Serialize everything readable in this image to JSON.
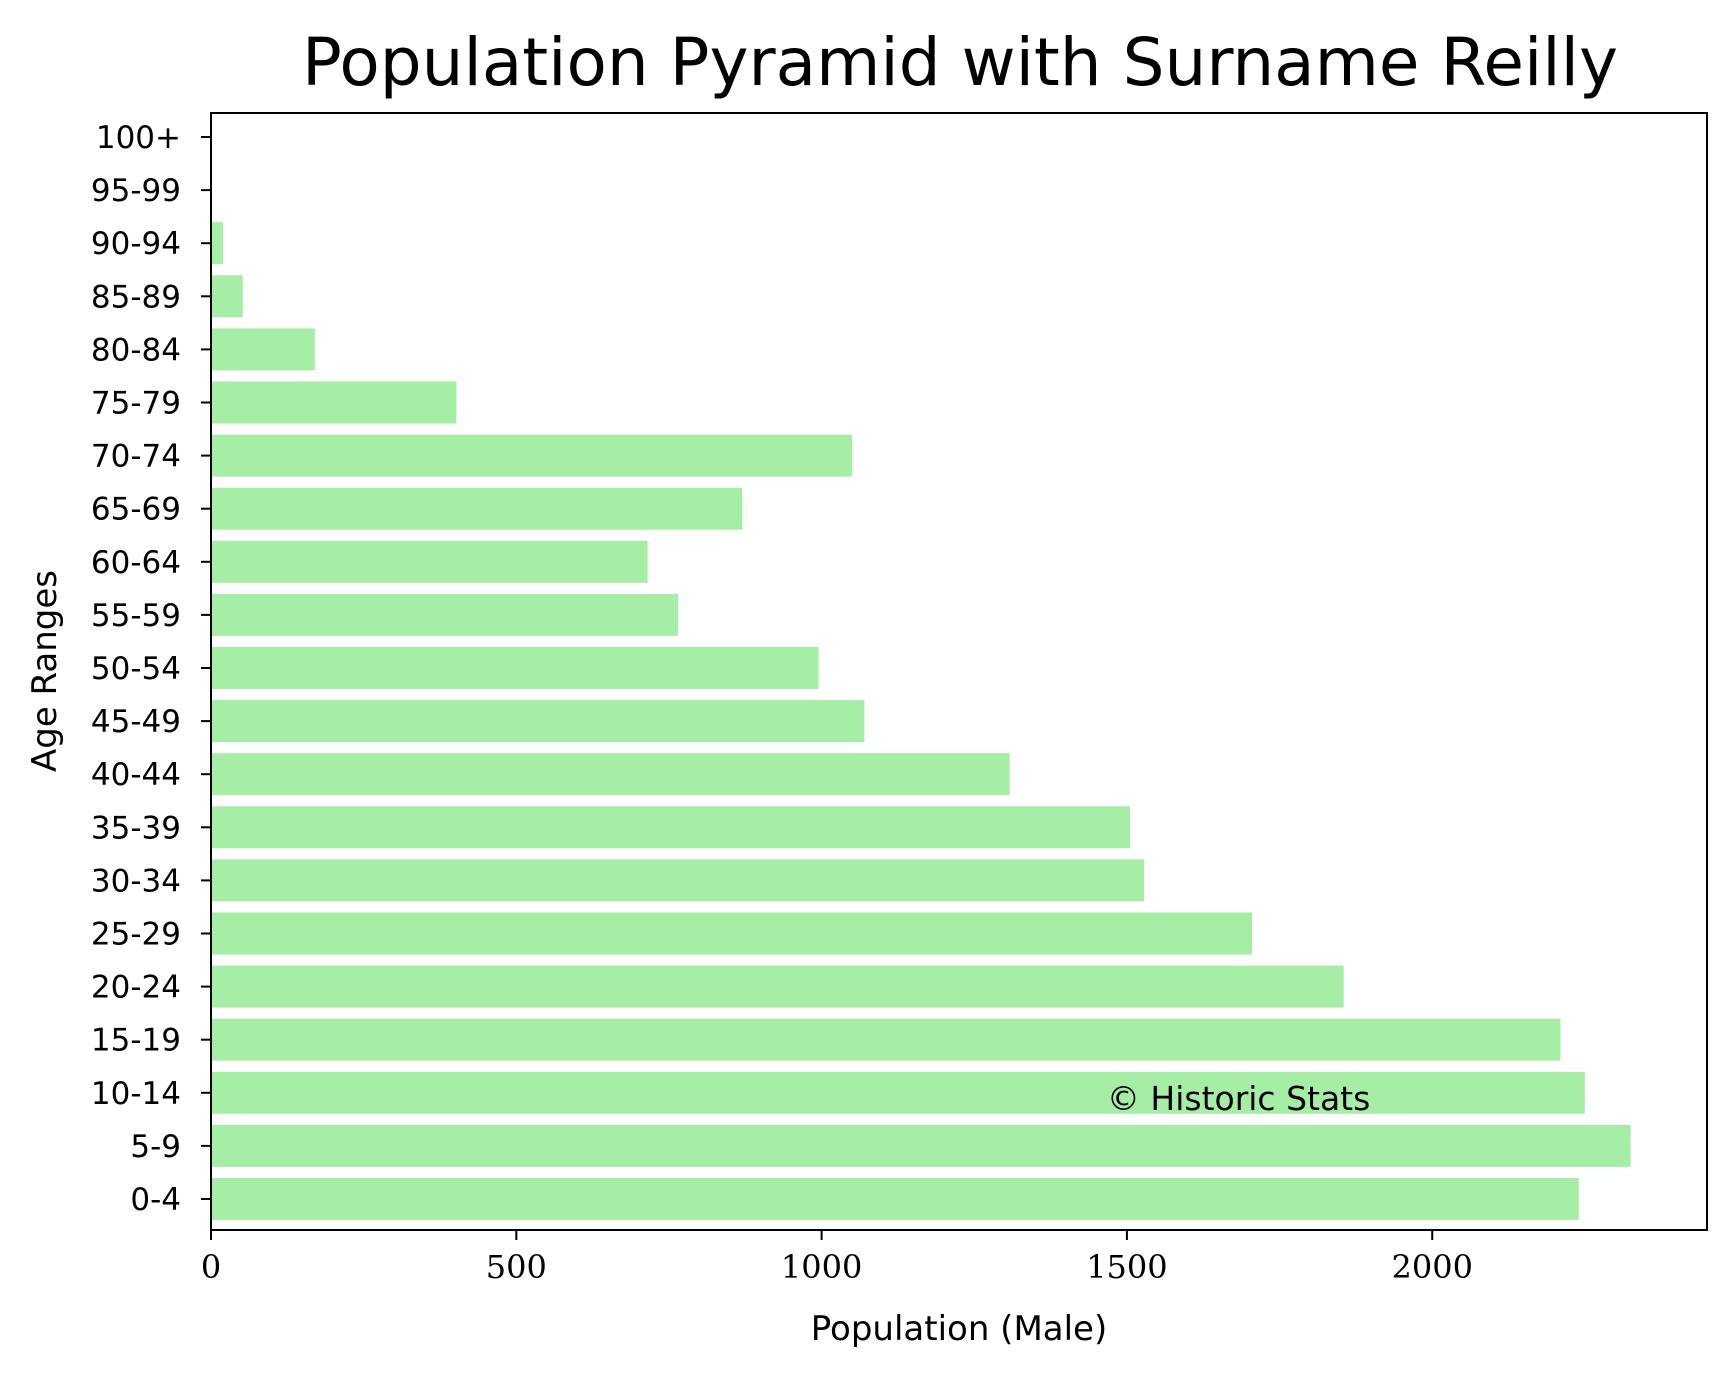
{
  "chart_data": {
    "type": "bar",
    "orientation": "horizontal",
    "title": "Population Pyramid with Surname Reilly",
    "xlabel": "Population (Male)",
    "ylabel": "Age Ranges",
    "categories": [
      "0-4",
      "5-9",
      "10-14",
      "15-19",
      "20-24",
      "25-29",
      "30-34",
      "35-39",
      "40-44",
      "45-49",
      "50-54",
      "55-59",
      "60-64",
      "65-69",
      "70-74",
      "75-79",
      "80-84",
      "85-89",
      "90-94",
      "95-99",
      "100+"
    ],
    "values": [
      2240,
      2325,
      2250,
      2210,
      1855,
      1705,
      1528,
      1505,
      1308,
      1070,
      995,
      765,
      715,
      870,
      1050,
      402,
      170,
      52,
      20,
      0,
      0
    ],
    "xlim": [
      0,
      2450
    ],
    "xticks": [
      "0",
      "500",
      "1000",
      "1500",
      "2000"
    ],
    "xtick_values": [
      0,
      500,
      1000,
      1500,
      2000
    ],
    "grid": false,
    "bar_color": "#a6eea6",
    "watermark": "© Historic Stats",
    "watermark_position": [
      1500,
      "10-14"
    ]
  }
}
